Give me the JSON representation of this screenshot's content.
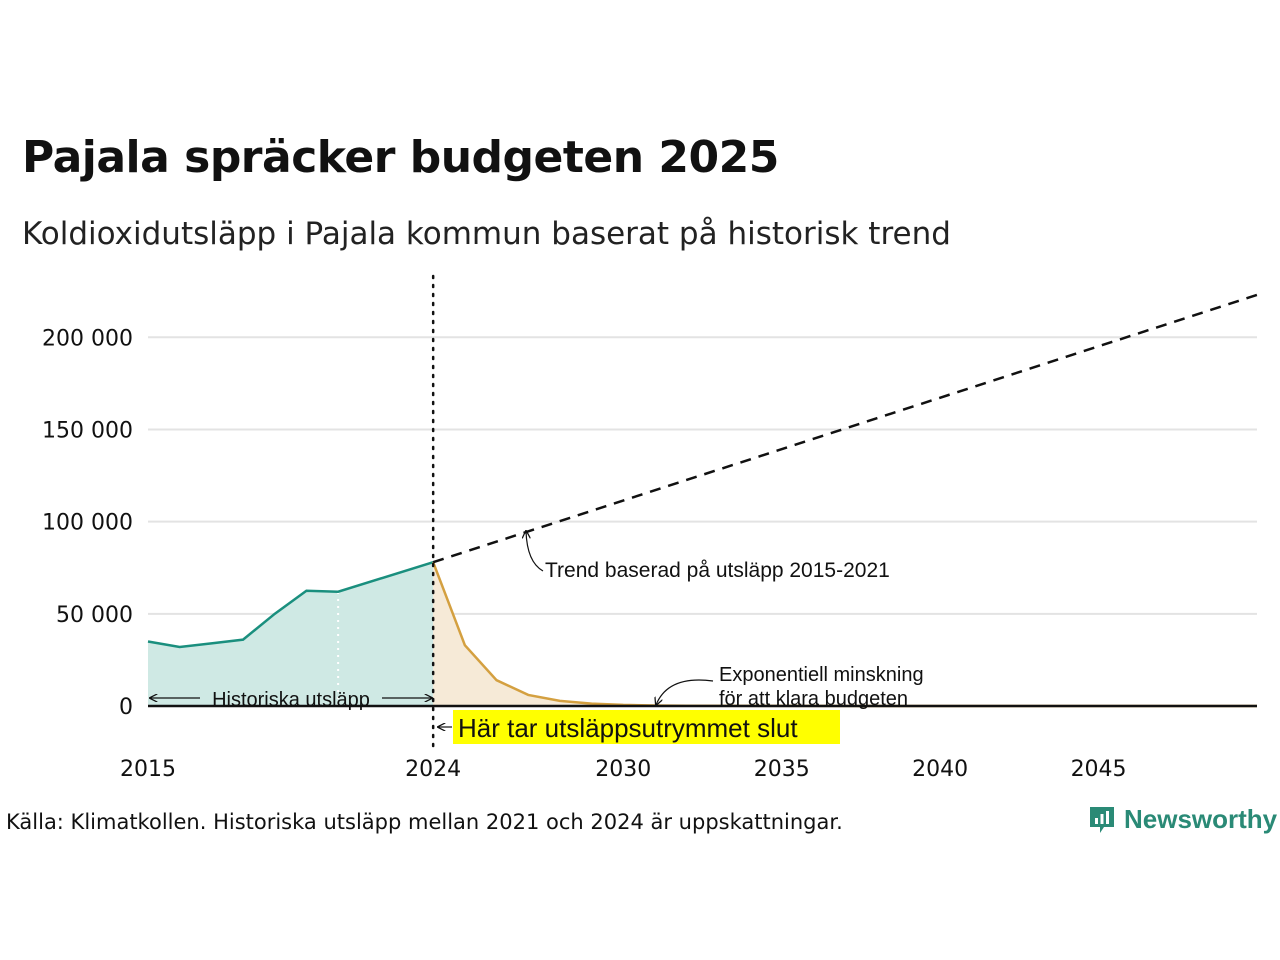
{
  "title": "Pajala spräcker budgeten 2025",
  "subtitle": "Koldioxidutsläpp i Pajala kommun baserat på historisk trend",
  "source": "Källa: Klimatkollen. Historiska utsläpp mellan 2021 och 2024 är uppskattningar.",
  "brand": {
    "name": "Newsworthy",
    "icon": "newsworthy-logo-icon",
    "color": "#2a8a76"
  },
  "chart_data": {
    "type": "area",
    "xlim": [
      2015,
      2050
    ],
    "ylim": [
      0,
      230000
    ],
    "yticks": [
      {
        "value": 0,
        "label": "0"
      },
      {
        "value": 50000,
        "label": "50 000"
      },
      {
        "value": 100000,
        "label": "100 000"
      },
      {
        "value": 150000,
        "label": "150 000"
      },
      {
        "value": 200000,
        "label": "200 000"
      }
    ],
    "xticks": [
      {
        "value": 2015,
        "label": "2015"
      },
      {
        "value": 2024,
        "label": "2024"
      },
      {
        "value": 2030,
        "label": "2030"
      },
      {
        "value": 2035,
        "label": "2035"
      },
      {
        "value": 2040,
        "label": "2040"
      },
      {
        "value": 2045,
        "label": "2045"
      }
    ],
    "grid": true,
    "series": [
      {
        "role": "historical",
        "color": "#1a8f7e",
        "fill": "#cfe9e4",
        "x": [
          2015,
          2016,
          2017,
          2018,
          2019,
          2020,
          2021,
          2024
        ],
        "y": [
          35000,
          32000,
          34000,
          36000,
          50000,
          62500,
          62000,
          78000
        ]
      },
      {
        "role": "exponential-decline",
        "color": "#d4a040",
        "fill": "#f6ead7",
        "x": [
          2024,
          2025,
          2026,
          2027,
          2028,
          2029,
          2030,
          2031,
          2032,
          2035,
          2040,
          2045,
          2050
        ],
        "y": [
          78000,
          33000,
          14000,
          6000,
          2800,
          1300,
          600,
          300,
          150,
          60,
          20,
          5,
          0
        ]
      },
      {
        "role": "trend",
        "style": "dashed",
        "color": "#111111",
        "x": [
          2024,
          2050
        ],
        "y": [
          78000,
          223000
        ]
      }
    ],
    "markers": [
      {
        "type": "vline",
        "x": 2024,
        "style": "dotted"
      },
      {
        "type": "vline",
        "x": 2021,
        "style": "dotted-white"
      }
    ],
    "annotations": {
      "historical": "Historiska utsläpp",
      "budget_end": "Här tar utsläppsutrymmet slut",
      "budget_end_color": "#ffff00",
      "trend": "Trend baserad på utsläpp 2015-2021",
      "decline_line1": "Exponentiell minskning",
      "decline_line2": "för att klara budgeten"
    }
  }
}
